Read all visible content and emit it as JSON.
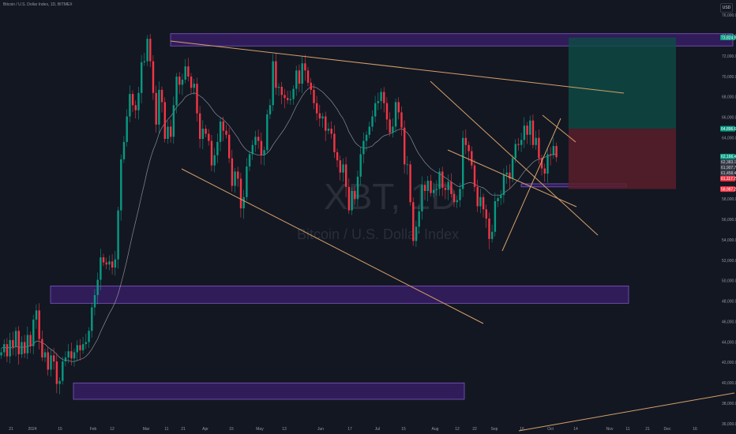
{
  "header": {
    "symbol_line": "Bitcoin / U.S. Dollar Index, 1D, BITMEX",
    "currency": "USD"
  },
  "watermark": {
    "symbol": "XBT, 1D",
    "description": "Bitcoin / U.S. Dollar Index"
  },
  "chart_data": {
    "type": "candlestick",
    "title": "Bitcoin / U.S. Dollar Index, 1D, BITMEX",
    "xlabel": "",
    "ylabel": "",
    "ylim": [
      35000,
      77500
    ],
    "x_tick_labels": [
      "21",
      "2024",
      "15",
      "Feb",
      "12",
      "Mar",
      "11",
      "21",
      "Apr",
      "15",
      "May",
      "13",
      "Jun",
      "17",
      "Jul",
      "15",
      "Aug",
      "12",
      "22",
      "Sep",
      "16",
      "Oct",
      "14",
      "Nov",
      "11",
      "21",
      "Dec",
      "16"
    ],
    "y_tick_labels": [
      "76,000.00",
      "74,000.00",
      "72,000.00",
      "70,000.00",
      "68,000.00",
      "66,000.00",
      "64,000.00",
      "62,000.00",
      "60,000.00",
      "58,000.00",
      "56,000.00",
      "54,000.00",
      "52,000.00",
      "50,000.00",
      "48,000.00",
      "46,000.00",
      "44,000.00",
      "42,000.00",
      "40,000.00",
      "38,000.00",
      "36,000.00"
    ],
    "price_labels": {
      "last_price": "62,166.45",
      "target": "73,824.97",
      "entry": "64,896.64",
      "stop": "58,987.29",
      "p1": "62,383.16",
      "p2": "61,907.73",
      "p3": "61,458.45",
      "p4": "61,117.72"
    },
    "series": [
      {
        "values_close": [
          43000,
          43800,
          42600,
          44200,
          43500,
          45100,
          42800,
          44000,
          42900,
          44700,
          43600,
          46200,
          47100,
          44300,
          42500,
          43000,
          41300,
          42700,
          42100,
          39900,
          40200,
          42100,
          42500,
          43100,
          42400,
          43000,
          43700,
          43200,
          43800,
          44000,
          45100,
          47400,
          48600,
          50100,
          52300,
          51800,
          51600,
          51900,
          51300,
          52100,
          56900,
          61900,
          63600,
          66100,
          68300,
          67200,
          66700,
          68400,
          71400,
          71500,
          73700,
          71500,
          68400,
          65300,
          68700,
          67500,
          63900,
          65100,
          64100,
          67200,
          70000,
          69200,
          69700,
          71000,
          70000,
          68900,
          69300,
          66400,
          63900,
          64900,
          64400,
          63700,
          61300,
          62300,
          63600,
          65600,
          64700,
          64300,
          62000,
          59300,
          60700,
          60000,
          57100,
          58200,
          61200,
          62400,
          63300,
          64100,
          63700,
          62300,
          62800,
          66300,
          67200,
          71500,
          68900,
          69000,
          68200,
          67900,
          67700,
          67800,
          68800,
          70600,
          69300,
          71300,
          70600,
          69400,
          68700,
          67400,
          66400,
          65900,
          66100,
          64700,
          64900,
          64400,
          62600,
          61800,
          60600,
          61400,
          59200,
          56900,
          58800,
          58000,
          60200,
          62400,
          63700,
          64300,
          65100,
          66100,
          67400,
          67600,
          68500,
          67400,
          65800,
          64500,
          65100,
          67500,
          66500,
          65000,
          61400,
          61400,
          57700,
          53900,
          55300,
          56800,
          59400,
          58800,
          59800,
          58600,
          58900,
          59000,
          60700,
          59100,
          58900,
          59700,
          58500,
          57700,
          57900,
          59000,
          64000,
          63300,
          62700,
          61300,
          59200,
          57300,
          58200,
          57000,
          56100,
          54100,
          54800,
          57800,
          58100,
          58400,
          60400,
          60600,
          60000,
          62000,
          63400,
          63300,
          63800,
          65200,
          64300,
          65700,
          63300,
          64000,
          62000,
          61000,
          60500,
          62400,
          62300,
          63200,
          62100
        ],
        "sma_values": [
          43400,
          43500,
          43400,
          43500,
          43400,
          43600,
          43500,
          43500,
          43500,
          43600,
          43600,
          43800,
          44100,
          44100,
          43900,
          43800,
          43500,
          43300,
          43100,
          42800,
          42500,
          42300,
          42200,
          42200,
          42100,
          42100,
          42200,
          42300,
          42400,
          42600,
          42900,
          43300,
          43800,
          44300,
          45000,
          45600,
          46200,
          46800,
          47300,
          47900,
          48700,
          49700,
          50800,
          52000,
          53300,
          54600,
          55800,
          57000,
          58300,
          59500,
          60800,
          61900,
          62800,
          63500,
          64400,
          65000,
          65400,
          65800,
          66100,
          66500,
          67000,
          67300,
          67600,
          68000,
          68200,
          68300,
          68400,
          68300,
          68100,
          67900,
          67600,
          67300,
          66900,
          66500,
          66200,
          66000,
          65800,
          65500,
          65200,
          64800,
          64400,
          64000,
          63500,
          63100,
          62800,
          62600,
          62500,
          62400,
          62300,
          62300,
          62300,
          62500,
          62800,
          63300,
          63700,
          64100,
          64500,
          64900,
          65400,
          65900,
          66500,
          67100,
          67600,
          68100,
          68500,
          68800,
          69000,
          69000,
          68900,
          68700,
          68500,
          68200,
          67900,
          67600,
          67200,
          66800,
          66300,
          65900,
          65300,
          64600,
          64100,
          63600,
          63300,
          63100,
          63000,
          63000,
          63100,
          63200,
          63500,
          63700,
          64000,
          64200,
          64300,
          64400,
          64500,
          64700,
          64800,
          64900,
          64700,
          64500,
          64100,
          63500,
          62900,
          62400,
          62000,
          61600,
          61300,
          61000,
          60800,
          60600,
          60500,
          60300,
          60100,
          59900,
          59700,
          59500,
          59300,
          59200,
          59400,
          59500,
          59600,
          59600,
          59500,
          59300,
          59200,
          59100,
          58900,
          58600,
          58400,
          58400,
          58400,
          58400,
          58600,
          58800,
          59000,
          59300,
          59600,
          59900,
          60300,
          60700,
          61000,
          61300,
          61600,
          61800,
          61900,
          62000,
          62100,
          62200,
          62300,
          62400,
          62400
        ]
      }
    ],
    "zones": [
      {
        "from": 73000,
        "to": 74200
      },
      {
        "from": 47800,
        "to": 49500
      },
      {
        "from": 38400,
        "to": 40000
      },
      {
        "from": 59200,
        "to": 59500
      }
    ],
    "long_position": {
      "entry": 64896.64,
      "target": 73824.97,
      "stop": 58987.29
    },
    "grid": false,
    "price_scale": "right"
  },
  "colors": {
    "background": "#131722",
    "up": "#089981",
    "down": "#f23645",
    "zone_fill": "#3c1f6e",
    "zone_stroke": "#7e57c2",
    "trendline": "#d4a06a",
    "sma": "#a7aab3",
    "profit_fill": "#0e4c45",
    "loss_fill": "#5a1e2a"
  }
}
